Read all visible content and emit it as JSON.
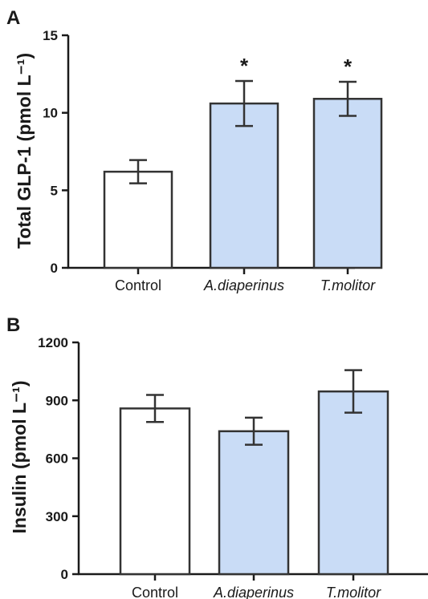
{
  "chart_data": [
    {
      "type": "bar",
      "panel": "A",
      "ylabel": "Total GLP-1 (pmol L⁻¹)",
      "ylim": [
        0,
        15
      ],
      "yticks": [
        "0",
        "5",
        "10",
        "15"
      ],
      "categories": [
        "Control",
        "A.diaperinus",
        "T.molitor"
      ],
      "values": [
        6.2,
        10.6,
        10.9
      ],
      "errors": [
        0.75,
        1.45,
        1.1
      ],
      "significance": [
        "",
        "*",
        "*"
      ],
      "colors": [
        "#ffffff",
        "#c9dcf6",
        "#c9dcf6"
      ],
      "grid": false
    },
    {
      "type": "bar",
      "panel": "B",
      "ylabel": "Insulin (pmol L⁻¹)",
      "ylim": [
        0,
        1200
      ],
      "yticks": [
        "0",
        "300",
        "600",
        "900",
        "1200"
      ],
      "categories": [
        "Control",
        "A.diaperinus",
        "T.molitor"
      ],
      "values": [
        858,
        740,
        946
      ],
      "errors": [
        70,
        70,
        110
      ],
      "significance": [
        "",
        "",
        ""
      ],
      "colors": [
        "#ffffff",
        "#c9dcf6",
        "#c9dcf6"
      ],
      "grid": false
    }
  ]
}
